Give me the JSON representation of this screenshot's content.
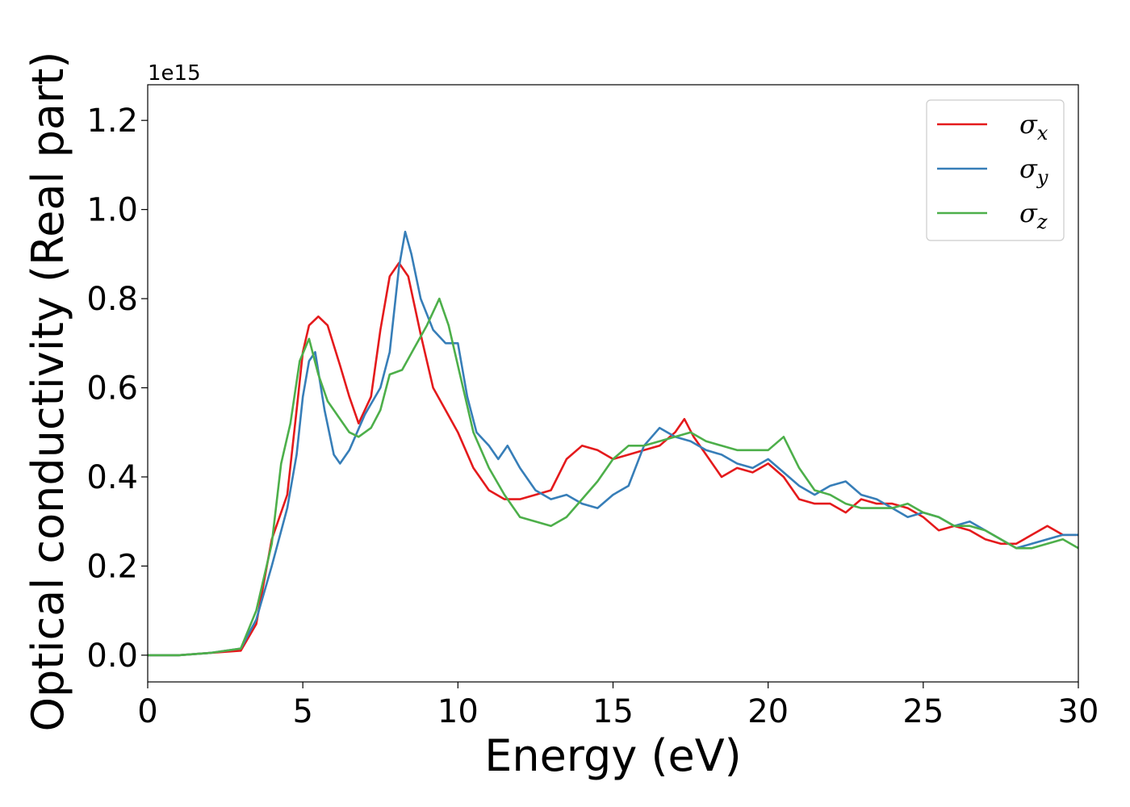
{
  "chart_data": {
    "type": "line",
    "xlabel": "Energy (eV)",
    "ylabel": "Optical conductivity (Real part)",
    "y_offset_label": "1e15",
    "xlim": [
      0,
      30
    ],
    "ylim": [
      -0.06,
      1.28
    ],
    "xticks": [
      0,
      5,
      10,
      15,
      20,
      25,
      30
    ],
    "xtick_labels": [
      "0",
      "5",
      "10",
      "15",
      "20",
      "25",
      "30"
    ],
    "yticks": [
      0.0,
      0.2,
      0.4,
      0.6,
      0.8,
      1.0,
      1.2
    ],
    "ytick_labels": [
      "0.0",
      "0.2",
      "0.4",
      "0.6",
      "0.8",
      "1.0",
      "1.2"
    ],
    "grid": false,
    "legend_position": "top-right",
    "series": [
      {
        "name": "σx",
        "name_main": "σ",
        "name_sub": "x",
        "color": "#e41a1c",
        "x": [
          0,
          1,
          2,
          3,
          3.5,
          4,
          4.5,
          4.8,
          5,
          5.2,
          5.5,
          5.8,
          6.2,
          6.5,
          6.8,
          7.2,
          7.5,
          7.8,
          8.1,
          8.4,
          8.8,
          9.2,
          9.6,
          10,
          10.5,
          11,
          11.5,
          12,
          12.5,
          13,
          13.5,
          14,
          14.5,
          15,
          15.5,
          16,
          16.5,
          17,
          17.3,
          17.6,
          18,
          18.5,
          19,
          19.5,
          20,
          20.5,
          21,
          21.5,
          22,
          22.5,
          23,
          23.5,
          24,
          24.5,
          25,
          25.5,
          26,
          26.5,
          27,
          27.5,
          28,
          28.5,
          29,
          29.5,
          30
        ],
        "y": [
          0,
          0,
          0.005,
          0.01,
          0.07,
          0.26,
          0.36,
          0.55,
          0.68,
          0.74,
          0.76,
          0.74,
          0.65,
          0.58,
          0.52,
          0.58,
          0.73,
          0.85,
          0.88,
          0.85,
          0.72,
          0.6,
          0.55,
          0.5,
          0.42,
          0.37,
          0.35,
          0.35,
          0.36,
          0.37,
          0.44,
          0.47,
          0.46,
          0.44,
          0.45,
          0.46,
          0.47,
          0.5,
          0.53,
          0.49,
          0.45,
          0.4,
          0.42,
          0.41,
          0.43,
          0.4,
          0.35,
          0.34,
          0.34,
          0.32,
          0.35,
          0.34,
          0.34,
          0.33,
          0.31,
          0.28,
          0.29,
          0.28,
          0.26,
          0.25,
          0.25,
          0.27,
          0.29,
          0.27,
          0.27
        ]
      },
      {
        "name": "σy",
        "name_main": "σ",
        "name_sub": "y",
        "color": "#377eb8",
        "x": [
          0,
          1,
          2,
          3,
          3.5,
          4,
          4.5,
          4.8,
          5,
          5.2,
          5.4,
          5.7,
          6,
          6.2,
          6.5,
          7,
          7.5,
          7.8,
          8.1,
          8.3,
          8.5,
          8.8,
          9.2,
          9.6,
          10,
          10.3,
          10.6,
          11,
          11.3,
          11.6,
          12,
          12.5,
          13,
          13.5,
          14,
          14.5,
          15,
          15.5,
          16,
          16.5,
          17,
          17.5,
          18,
          18.5,
          19,
          19.5,
          20,
          20.5,
          21,
          21.5,
          22,
          22.5,
          23,
          23.5,
          24,
          24.5,
          25,
          25.5,
          26,
          26.5,
          27,
          27.5,
          28,
          28.5,
          29,
          29.5,
          30
        ],
        "y": [
          0,
          0,
          0.005,
          0.015,
          0.08,
          0.2,
          0.33,
          0.45,
          0.58,
          0.66,
          0.68,
          0.55,
          0.45,
          0.43,
          0.46,
          0.54,
          0.6,
          0.68,
          0.87,
          0.95,
          0.9,
          0.8,
          0.73,
          0.7,
          0.7,
          0.58,
          0.5,
          0.47,
          0.44,
          0.47,
          0.42,
          0.37,
          0.35,
          0.36,
          0.34,
          0.33,
          0.36,
          0.38,
          0.47,
          0.51,
          0.49,
          0.48,
          0.46,
          0.45,
          0.43,
          0.42,
          0.44,
          0.41,
          0.38,
          0.36,
          0.38,
          0.39,
          0.36,
          0.35,
          0.33,
          0.31,
          0.32,
          0.31,
          0.29,
          0.3,
          0.28,
          0.26,
          0.24,
          0.25,
          0.26,
          0.27,
          0.27
        ]
      },
      {
        "name": "σz",
        "name_main": "σ",
        "name_sub": "z",
        "color": "#4daf4a",
        "x": [
          0,
          1,
          2,
          3,
          3.5,
          4,
          4.3,
          4.6,
          4.9,
          5.2,
          5.5,
          5.8,
          6.2,
          6.5,
          6.8,
          7.2,
          7.5,
          7.8,
          8.2,
          8.6,
          9,
          9.4,
          9.7,
          10,
          10.5,
          11,
          11.5,
          12,
          12.5,
          13,
          13.5,
          14,
          14.5,
          15,
          15.5,
          16,
          16.5,
          17,
          17.5,
          18,
          18.5,
          19,
          19.5,
          20,
          20.5,
          21,
          21.5,
          22,
          22.5,
          23,
          23.5,
          24,
          24.5,
          25,
          25.5,
          26,
          26.5,
          27,
          27.5,
          28,
          28.5,
          29,
          29.5,
          30
        ],
        "y": [
          0,
          0,
          0.005,
          0.015,
          0.1,
          0.25,
          0.43,
          0.52,
          0.66,
          0.71,
          0.63,
          0.57,
          0.53,
          0.5,
          0.49,
          0.51,
          0.55,
          0.63,
          0.64,
          0.69,
          0.74,
          0.8,
          0.74,
          0.65,
          0.5,
          0.42,
          0.36,
          0.31,
          0.3,
          0.29,
          0.31,
          0.35,
          0.39,
          0.44,
          0.47,
          0.47,
          0.48,
          0.49,
          0.5,
          0.48,
          0.47,
          0.46,
          0.46,
          0.46,
          0.49,
          0.42,
          0.37,
          0.36,
          0.34,
          0.33,
          0.33,
          0.33,
          0.34,
          0.32,
          0.31,
          0.29,
          0.29,
          0.28,
          0.26,
          0.24,
          0.24,
          0.25,
          0.26,
          0.24
        ]
      }
    ]
  }
}
